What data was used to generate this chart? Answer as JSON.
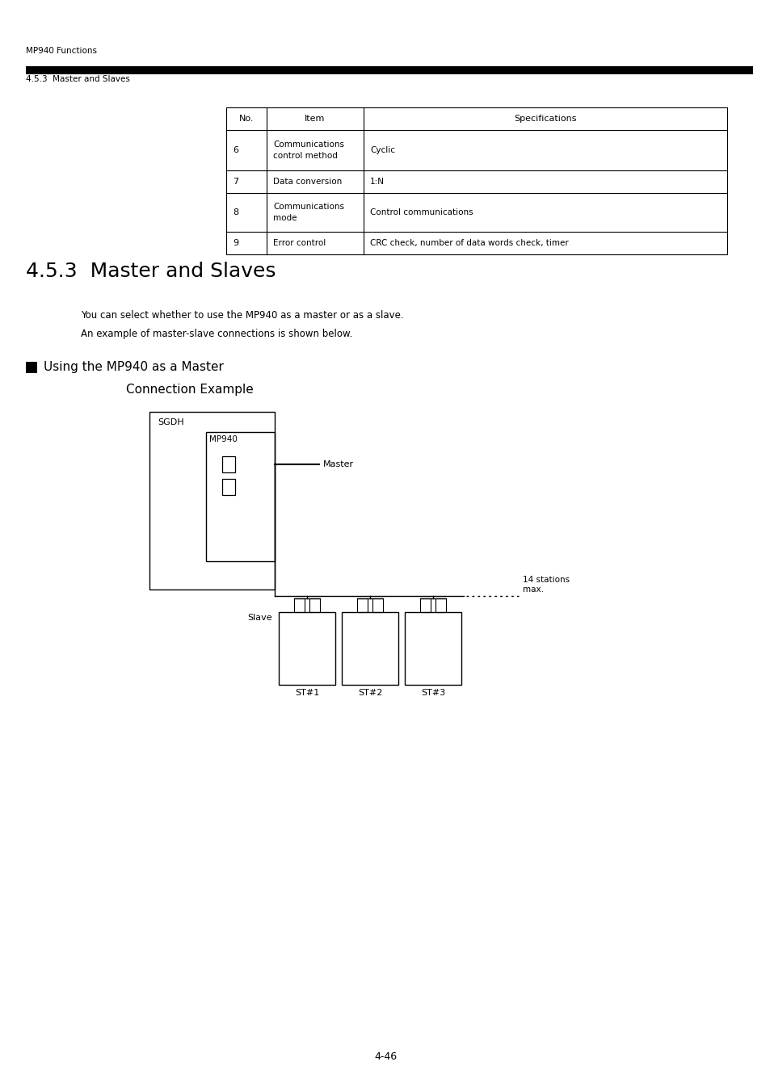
{
  "page_header_left": "MP940 Functions",
  "page_subheader": "4.5.3  Master and Slaves",
  "section_title": "4.5.3  Master and Slaves",
  "body_text1": "You can select whether to use the MP940 as a master or as a slave.",
  "body_text2": "An example of master-slave connections is shown below.",
  "subsection_title": "Using the MP940 as a Master",
  "diagram_title": "Connection Example",
  "page_number": "4-46",
  "table": {
    "headers": [
      "No.",
      "Item",
      "Specifications"
    ],
    "rows": [
      [
        "6",
        "Communications\ncontrol method",
        "Cyclic"
      ],
      [
        "7",
        "Data conversion",
        "1:N"
      ],
      [
        "8",
        "Communications\nmode",
        "Control communications"
      ],
      [
        "9",
        "Error control",
        "CRC check, number of data words check, timer"
      ]
    ]
  },
  "bg_color": "#ffffff",
  "text_color": "#000000",
  "line_color": "#000000",
  "header_bar_color": "#000000"
}
